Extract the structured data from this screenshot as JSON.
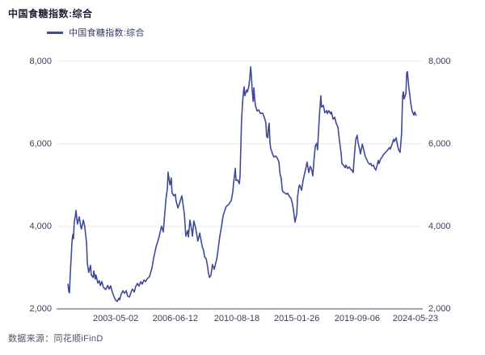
{
  "source": "数据来源：同花顺iFinD",
  "colors": {
    "line": "#3E4A9A",
    "grid": "#EAEAF3",
    "axis": "#A6A6B0",
    "tick_text": "#3D3D52",
    "title_text": "#1D1D30",
    "legend_text": "#363C64",
    "source_text": "#50506A",
    "background": "#FFFFFF"
  },
  "chart_data": {
    "type": "line",
    "title": "中国食糖指数:综合",
    "source_note": "数据来源：同花顺iFinD",
    "legend_position": "top-left",
    "grid": true,
    "y_axis": {
      "min": 2000,
      "max": 8000,
      "ticks": [
        2000,
        4000,
        6000,
        8000
      ],
      "tick_labels": [
        "2,000",
        "4,000",
        "6,000",
        "8,000"
      ],
      "sides": "both"
    },
    "x_axis": {
      "type": "time",
      "tick_labels": [
        "2003-05-02",
        "2006-06-12",
        "2010-08-18",
        "2015-01-26",
        "2019-09-06",
        "2024-05-23"
      ],
      "tick_positions": [
        0.158,
        0.322,
        0.491,
        0.656,
        0.822,
        0.982
      ]
    },
    "series": [
      {
        "name": "中国食糖指数:综合",
        "color": "#3E4A9A",
        "points": [
          [
            0.027,
            2600
          ],
          [
            0.029,
            2430
          ],
          [
            0.031,
            2390
          ],
          [
            0.033,
            2800
          ],
          [
            0.036,
            3300
          ],
          [
            0.038,
            3641
          ],
          [
            0.04,
            3798
          ],
          [
            0.042,
            3700
          ],
          [
            0.044,
            4091
          ],
          [
            0.047,
            4248
          ],
          [
            0.049,
            4384
          ],
          [
            0.053,
            4052
          ],
          [
            0.058,
            4228
          ],
          [
            0.062,
            3993
          ],
          [
            0.064,
            3935
          ],
          [
            0.069,
            4150
          ],
          [
            0.073,
            4000
          ],
          [
            0.078,
            3600
          ],
          [
            0.08,
            3114
          ],
          [
            0.084,
            2880
          ],
          [
            0.089,
            3055
          ],
          [
            0.091,
            2820
          ],
          [
            0.096,
            2762
          ],
          [
            0.098,
            2918
          ],
          [
            0.102,
            2723
          ],
          [
            0.104,
            2820
          ],
          [
            0.109,
            2625
          ],
          [
            0.113,
            2684
          ],
          [
            0.116,
            2566
          ],
          [
            0.12,
            2664
          ],
          [
            0.124,
            2527
          ],
          [
            0.131,
            2468
          ],
          [
            0.136,
            2566
          ],
          [
            0.14,
            2480
          ],
          [
            0.144,
            2560
          ],
          [
            0.149,
            2400
          ],
          [
            0.153,
            2310
          ],
          [
            0.158,
            2210
          ],
          [
            0.162,
            2180
          ],
          [
            0.167,
            2260
          ],
          [
            0.169,
            2220
          ],
          [
            0.173,
            2350
          ],
          [
            0.178,
            2440
          ],
          [
            0.182,
            2380
          ],
          [
            0.187,
            2440
          ],
          [
            0.191,
            2310
          ],
          [
            0.196,
            2290
          ],
          [
            0.2,
            2400
          ],
          [
            0.204,
            2480
          ],
          [
            0.209,
            2410
          ],
          [
            0.213,
            2540
          ],
          [
            0.218,
            2620
          ],
          [
            0.222,
            2550
          ],
          [
            0.227,
            2660
          ],
          [
            0.231,
            2600
          ],
          [
            0.236,
            2700
          ],
          [
            0.24,
            2660
          ],
          [
            0.244,
            2720
          ],
          [
            0.251,
            2782
          ],
          [
            0.258,
            3000
          ],
          [
            0.262,
            3212
          ],
          [
            0.269,
            3505
          ],
          [
            0.276,
            3700
          ],
          [
            0.28,
            3850
          ],
          [
            0.284,
            4000
          ],
          [
            0.289,
            3863
          ],
          [
            0.293,
            4300
          ],
          [
            0.296,
            4645
          ],
          [
            0.3,
            4900
          ],
          [
            0.302,
            5310
          ],
          [
            0.307,
            5000
          ],
          [
            0.311,
            5170
          ],
          [
            0.313,
            4814
          ],
          [
            0.318,
            4736
          ],
          [
            0.322,
            4775
          ],
          [
            0.324,
            4619
          ],
          [
            0.329,
            4443
          ],
          [
            0.333,
            4541
          ],
          [
            0.34,
            4736
          ],
          [
            0.347,
            4287
          ],
          [
            0.351,
            3759
          ],
          [
            0.356,
            3896
          ],
          [
            0.358,
            3740
          ],
          [
            0.362,
            4150
          ],
          [
            0.367,
            3900
          ],
          [
            0.369,
            3759
          ],
          [
            0.373,
            4130
          ],
          [
            0.378,
            3954
          ],
          [
            0.384,
            3641
          ],
          [
            0.389,
            3837
          ],
          [
            0.396,
            3505
          ],
          [
            0.4,
            3407
          ],
          [
            0.402,
            3270
          ],
          [
            0.407,
            3212
          ],
          [
            0.411,
            3016
          ],
          [
            0.413,
            2860
          ],
          [
            0.416,
            2762
          ],
          [
            0.42,
            2821
          ],
          [
            0.424,
            3075
          ],
          [
            0.429,
            2957
          ],
          [
            0.436,
            3212
          ],
          [
            0.44,
            3466
          ],
          [
            0.444,
            3740
          ],
          [
            0.449,
            4000
          ],
          [
            0.453,
            4248
          ],
          [
            0.458,
            4385
          ],
          [
            0.462,
            4482
          ],
          [
            0.469,
            4530
          ],
          [
            0.476,
            4630
          ],
          [
            0.48,
            4834
          ],
          [
            0.482,
            5030
          ],
          [
            0.487,
            5401
          ],
          [
            0.489,
            5107
          ],
          [
            0.493,
            5127
          ],
          [
            0.498,
            5030
          ],
          [
            0.5,
            5230
          ],
          [
            0.502,
            5900
          ],
          [
            0.504,
            6550
          ],
          [
            0.507,
            7000
          ],
          [
            0.509,
            7230
          ],
          [
            0.511,
            7375
          ],
          [
            0.513,
            7160
          ],
          [
            0.518,
            7300
          ],
          [
            0.52,
            7250
          ],
          [
            0.524,
            7380
          ],
          [
            0.527,
            7600
          ],
          [
            0.529,
            7860
          ],
          [
            0.531,
            7650
          ],
          [
            0.533,
            7310
          ],
          [
            0.536,
            7023
          ],
          [
            0.538,
            7350
          ],
          [
            0.54,
            7100
          ],
          [
            0.542,
            6925
          ],
          [
            0.547,
            6788
          ],
          [
            0.551,
            6820
          ],
          [
            0.556,
            6730
          ],
          [
            0.562,
            6740
          ],
          [
            0.567,
            6632
          ],
          [
            0.571,
            6500
          ],
          [
            0.573,
            6182
          ],
          [
            0.576,
            6143
          ],
          [
            0.578,
            6400
          ],
          [
            0.58,
            6495
          ],
          [
            0.582,
            6045
          ],
          [
            0.584,
            5900
          ],
          [
            0.589,
            5752
          ],
          [
            0.593,
            5680
          ],
          [
            0.598,
            5700
          ],
          [
            0.602,
            5655
          ],
          [
            0.607,
            5557
          ],
          [
            0.609,
            5323
          ],
          [
            0.611,
            5225
          ],
          [
            0.613,
            5166
          ],
          [
            0.616,
            4873
          ],
          [
            0.618,
            4834
          ],
          [
            0.622,
            4814
          ],
          [
            0.627,
            4780
          ],
          [
            0.631,
            4800
          ],
          [
            0.636,
            4716
          ],
          [
            0.64,
            4677
          ],
          [
            0.644,
            4541
          ],
          [
            0.647,
            4384
          ],
          [
            0.649,
            4228
          ],
          [
            0.651,
            4100
          ],
          [
            0.653,
            4189
          ],
          [
            0.656,
            4300
          ],
          [
            0.658,
            4716
          ],
          [
            0.662,
            4970
          ],
          [
            0.664,
            5000
          ],
          [
            0.669,
            4873
          ],
          [
            0.673,
            5100
          ],
          [
            0.678,
            5303
          ],
          [
            0.682,
            5450
          ],
          [
            0.684,
            5557
          ],
          [
            0.689,
            5303
          ],
          [
            0.693,
            5450
          ],
          [
            0.696,
            5400
          ],
          [
            0.7,
            5225
          ],
          [
            0.704,
            5700
          ],
          [
            0.707,
            5948
          ],
          [
            0.711,
            6006
          ],
          [
            0.713,
            5850
          ],
          [
            0.718,
            6671
          ],
          [
            0.722,
            7160
          ],
          [
            0.724,
            6886
          ],
          [
            0.729,
            6925
          ],
          [
            0.733,
            6750
          ],
          [
            0.738,
            6800
          ],
          [
            0.74,
            6730
          ],
          [
            0.744,
            6800
          ],
          [
            0.749,
            6720
          ],
          [
            0.751,
            6769
          ],
          [
            0.756,
            6593
          ],
          [
            0.76,
            6640
          ],
          [
            0.764,
            6500
          ],
          [
            0.769,
            6397
          ],
          [
            0.773,
            6084
          ],
          [
            0.778,
            5752
          ],
          [
            0.78,
            5518
          ],
          [
            0.784,
            5480
          ],
          [
            0.789,
            5420
          ],
          [
            0.791,
            5480
          ],
          [
            0.796,
            5400
          ],
          [
            0.8,
            5440
          ],
          [
            0.804,
            5380
          ],
          [
            0.807,
            5362
          ],
          [
            0.811,
            5303
          ],
          [
            0.813,
            5557
          ],
          [
            0.818,
            6104
          ],
          [
            0.822,
            6202
          ],
          [
            0.824,
            6045
          ],
          [
            0.829,
            5850
          ],
          [
            0.831,
            5752
          ],
          [
            0.836,
            5987
          ],
          [
            0.84,
            5850
          ],
          [
            0.844,
            5694
          ],
          [
            0.849,
            5600
          ],
          [
            0.851,
            5557
          ],
          [
            0.856,
            5498
          ],
          [
            0.86,
            5520
          ],
          [
            0.862,
            5459
          ],
          [
            0.867,
            5480
          ],
          [
            0.869,
            5420
          ],
          [
            0.873,
            5362
          ],
          [
            0.876,
            5450
          ],
          [
            0.88,
            5596
          ],
          [
            0.882,
            5520
          ],
          [
            0.887,
            5640
          ],
          [
            0.889,
            5655
          ],
          [
            0.893,
            5720
          ],
          [
            0.896,
            5752
          ],
          [
            0.9,
            5790
          ],
          [
            0.902,
            5811
          ],
          [
            0.907,
            5860
          ],
          [
            0.911,
            5909
          ],
          [
            0.913,
            5870
          ],
          [
            0.918,
            5987
          ],
          [
            0.922,
            6105
          ],
          [
            0.924,
            6050
          ],
          [
            0.929,
            6143
          ],
          [
            0.933,
            5948
          ],
          [
            0.936,
            5850
          ],
          [
            0.94,
            5791
          ],
          [
            0.944,
            6241
          ],
          [
            0.947,
            7160
          ],
          [
            0.949,
            7257
          ],
          [
            0.951,
            7082
          ],
          [
            0.956,
            7218
          ],
          [
            0.958,
            7707
          ],
          [
            0.96,
            7746
          ],
          [
            0.964,
            7355
          ],
          [
            0.967,
            7160
          ],
          [
            0.969,
            6984
          ],
          [
            0.973,
            6788
          ],
          [
            0.978,
            6690
          ],
          [
            0.98,
            6769
          ],
          [
            0.984,
            6690
          ]
        ]
      }
    ]
  }
}
